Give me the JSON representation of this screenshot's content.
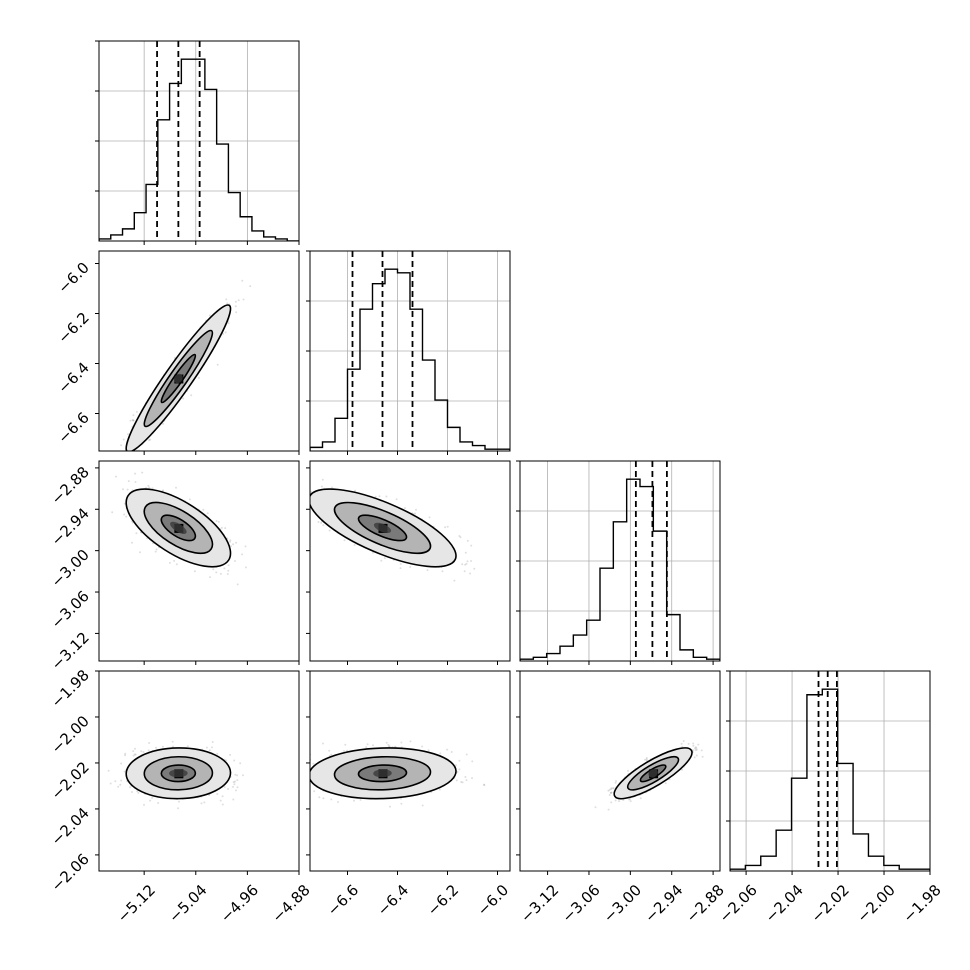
{
  "chart_data": [
    {
      "type": "histogram",
      "panel": [
        0,
        0
      ],
      "xlim": [
        -5.19,
        -4.88
      ],
      "x_ticks": [
        -5.12,
        -5.04,
        -4.96,
        -4.88
      ],
      "grid": true,
      "step": true,
      "counts": [
        1,
        3,
        6,
        14,
        28,
        60,
        78,
        90,
        90,
        75,
        48,
        24,
        12,
        5,
        2,
        1,
        0
      ],
      "quantiles": [
        -5.1,
        -5.067,
        -5.034
      ]
    },
    {
      "type": "histogram",
      "panel": [
        1,
        1
      ],
      "xlim": [
        -6.75,
        -5.95
      ],
      "x_ticks": [
        -6.6,
        -6.4,
        -6.2,
        -6.0
      ],
      "grid": true,
      "step": true,
      "counts": [
        2,
        5,
        18,
        45,
        78,
        92,
        100,
        98,
        78,
        50,
        28,
        13,
        5,
        3,
        1,
        1
      ],
      "quantiles": [
        -6.58,
        -6.46,
        -6.34
      ]
    },
    {
      "type": "histogram",
      "panel": [
        2,
        2
      ],
      "xlim": [
        -3.16,
        -2.87
      ],
      "x_ticks": [
        -3.12,
        -3.06,
        -3.0,
        -2.94,
        -2.88
      ],
      "grid": true,
      "step": true,
      "counts": [
        1,
        2,
        4,
        8,
        14,
        22,
        50,
        75,
        98,
        94,
        70,
        25,
        6,
        2,
        1
      ],
      "quantiles": [
        -2.992,
        -2.968,
        -2.947
      ]
    },
    {
      "type": "histogram",
      "panel": [
        3,
        3
      ],
      "xlim": [
        -2.067,
        -1.98
      ],
      "x_ticks": [
        -2.06,
        -2.04,
        -2.02,
        -2.0,
        -1.98
      ],
      "grid": true,
      "step": true,
      "counts": [
        1,
        3,
        8,
        22,
        50,
        95,
        98,
        58,
        20,
        8,
        3,
        1,
        1
      ],
      "quantiles": [
        -2.0285,
        -2.0245,
        -2.0205
      ]
    },
    {
      "type": "scatter-density",
      "panel": [
        1,
        0
      ],
      "xlim": [
        -5.19,
        -4.88
      ],
      "ylim": [
        -6.75,
        -5.95
      ],
      "y_ticks": [
        -6.6,
        -6.4,
        -6.2,
        -6.0
      ],
      "center": [
        -5.067,
        -6.46
      ],
      "spread": [
        0.033,
        0.12
      ],
      "correlation": 0.95,
      "contour_levels": [
        0.8,
        1.6,
        2.45
      ]
    },
    {
      "type": "scatter-density",
      "panel": [
        2,
        0
      ],
      "xlim": [
        -5.19,
        -4.88
      ],
      "ylim": [
        -3.16,
        -2.87
      ],
      "y_ticks": [
        -3.12,
        -3.06,
        -3.0,
        -2.94,
        -2.88
      ],
      "center": [
        -5.067,
        -2.967
      ],
      "spread": [
        0.033,
        0.023
      ],
      "correlation": -0.65,
      "contour_levels": [
        0.8,
        1.6,
        2.45
      ]
    },
    {
      "type": "scatter-density",
      "panel": [
        2,
        1
      ],
      "xlim": [
        -6.75,
        -5.95
      ],
      "ylim": [
        -3.16,
        -2.87
      ],
      "center": [
        -6.46,
        -2.967
      ],
      "spread": [
        0.12,
        0.023
      ],
      "correlation": -0.72,
      "contour_levels": [
        0.8,
        1.6,
        2.45
      ]
    },
    {
      "type": "scatter-density",
      "panel": [
        3,
        0
      ],
      "xlim": [
        -5.19,
        -4.88
      ],
      "ylim": [
        -2.067,
        -1.98
      ],
      "x_ticks": [
        -5.12,
        -5.04,
        -4.96,
        -4.88
      ],
      "y_ticks": [
        -2.06,
        -2.04,
        -2.02,
        -2.0,
        -1.98
      ],
      "center": [
        -5.067,
        -2.0245
      ],
      "spread": [
        0.033,
        0.0045
      ],
      "correlation": 0.02,
      "contour_levels": [
        0.8,
        1.6,
        2.45
      ]
    },
    {
      "type": "scatter-density",
      "panel": [
        3,
        1
      ],
      "xlim": [
        -6.75,
        -5.95
      ],
      "ylim": [
        -2.067,
        -1.98
      ],
      "x_ticks": [
        -6.6,
        -6.4,
        -6.2,
        -6.0
      ],
      "center": [
        -6.46,
        -2.0245
      ],
      "spread": [
        0.12,
        0.0045
      ],
      "correlation": 0.08,
      "contour_levels": [
        0.8,
        1.6,
        2.45
      ]
    },
    {
      "type": "scatter-density",
      "panel": [
        3,
        2
      ],
      "xlim": [
        -3.16,
        -2.87
      ],
      "ylim": [
        -2.067,
        -1.98
      ],
      "x_ticks": [
        -3.12,
        -3.06,
        -3.0,
        -2.94,
        -2.88
      ],
      "center": [
        -2.967,
        -2.0245
      ],
      "spread": [
        0.023,
        0.0045
      ],
      "correlation": 0.82,
      "contour_levels": [
        0.8,
        1.6,
        2.45
      ]
    }
  ],
  "style": {
    "line_color": "#000000",
    "grid_color": "#b0b0b0",
    "point_color": "#7f7f7f",
    "fill_colors": [
      "#e6e6e6",
      "#b4b4b4",
      "#7a7a7a",
      "#3a3a3a",
      "#000000"
    ]
  }
}
